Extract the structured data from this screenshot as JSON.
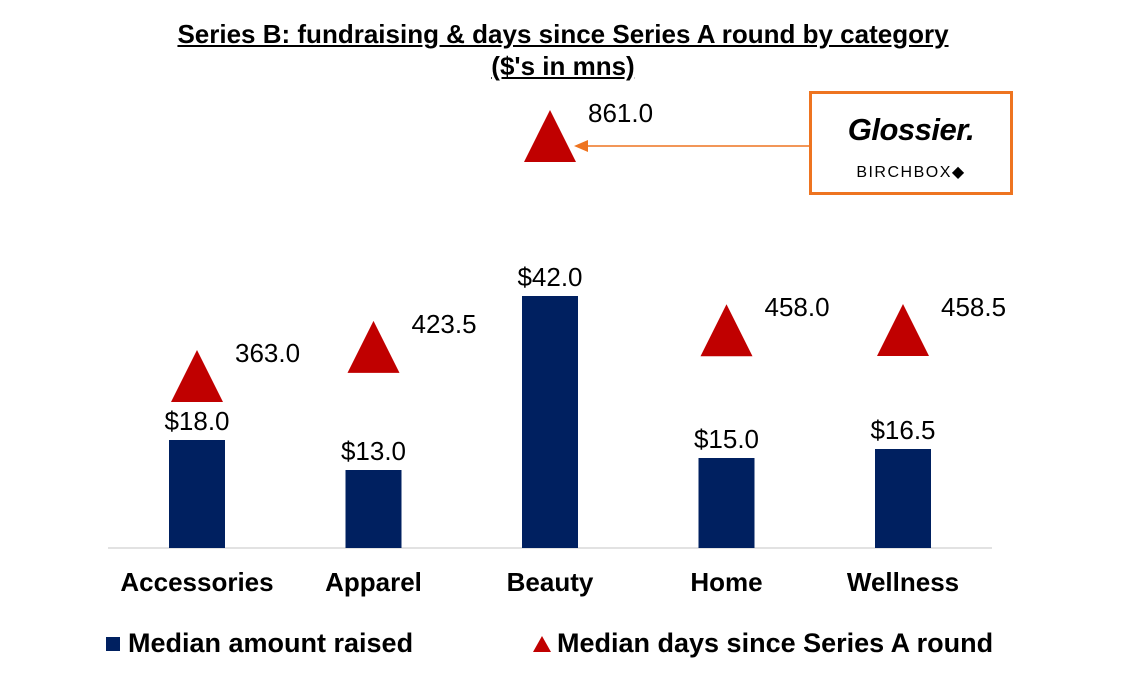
{
  "title_line1": "Series B: fundraising & days since Series A round by category",
  "title_line2": "($'s in mns)",
  "chart_data": {
    "type": "bar+scatter",
    "title": "Series B: fundraising & days since Series A round by category ($'s in mns)",
    "categories": [
      "Accessories",
      "Apparel",
      "Beauty",
      "Home",
      "Wellness"
    ],
    "series": [
      {
        "name": "Median amount raised",
        "type": "bar",
        "color": "#002060",
        "values": [
          18.0,
          13.0,
          42.0,
          15.0,
          16.5
        ],
        "labels": [
          "$18.0",
          "$13.0",
          "$42.0",
          "$15.0",
          "$16.5"
        ]
      },
      {
        "name": "Median days since Series A round",
        "type": "triangle-marker",
        "color": "#c00000",
        "values": [
          363.0,
          423.5,
          861.0,
          458.0,
          458.5
        ],
        "labels": [
          "363.0",
          "423.5",
          "861.0",
          "458.0",
          "458.5"
        ]
      }
    ],
    "legend_placement": "bottom",
    "grid": false,
    "annotation": {
      "target": "Beauty",
      "logos": [
        "Glossier.",
        "BIRCHBOX"
      ],
      "color": "#ee7420"
    }
  }
}
